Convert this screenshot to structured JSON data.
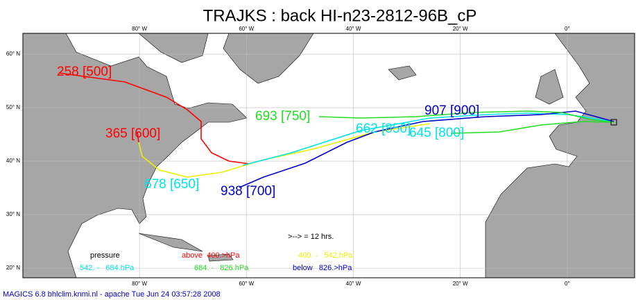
{
  "title": "TRAJKS : back HI-n23-2812-96B_cP",
  "map": {
    "xlim": [
      -101.8,
      12.6
    ],
    "ylim": [
      18.2,
      63.9
    ],
    "xticks": [
      {
        "value": -80,
        "label": "80° W"
      },
      {
        "value": -60,
        "label": "60° W"
      },
      {
        "value": -40,
        "label": "40° W"
      },
      {
        "value": -20,
        "label": "20° W"
      },
      {
        "value": 0,
        "label": "0°"
      }
    ],
    "yticks": [
      {
        "value": 20,
        "label": "20° N"
      },
      {
        "value": 30,
        "label": "30° N"
      },
      {
        "value": 40,
        "label": "40° N"
      },
      {
        "value": 50,
        "label": "50° N"
      },
      {
        "value": 60,
        "label": "60° N"
      }
    ],
    "grid": true
  },
  "trajectory_labels": [
    {
      "text": "258 [500]",
      "color": "#ff0000"
    },
    {
      "text": "365 [600]",
      "color": "#ff0000"
    },
    {
      "text": "678 [650]",
      "color": "#00e5e5"
    },
    {
      "text": "938 [700]",
      "color": "#0000cc"
    },
    {
      "text": "693 [750]",
      "color": "#22dd22"
    },
    {
      "text": "662 [850]",
      "color": "#00e5e5"
    },
    {
      "text": "645 [800]",
      "color": "#00e5e5"
    },
    {
      "text": "907 [900]",
      "color": "#0000cc"
    }
  ],
  "legend": {
    "note": ">--> = 12 hrs.",
    "title": "pressure",
    "entries": [
      {
        "label": "above  400.>hPa",
        "color": "#ff0000"
      },
      {
        "label": "400. -   542.hPa",
        "color": "#eeee00"
      },
      {
        "label": "542. -   684.hPa",
        "color": "#00e5e5"
      },
      {
        "label": "684. -   826.hPa",
        "color": "#22dd22"
      },
      {
        "label": "below   826.>hPa",
        "color": "#0000cc"
      }
    ]
  },
  "footer": "MAGICS 6.8 bhlclim.knmi.nl - apache Tue Jun 24 03:57:28 2008"
}
